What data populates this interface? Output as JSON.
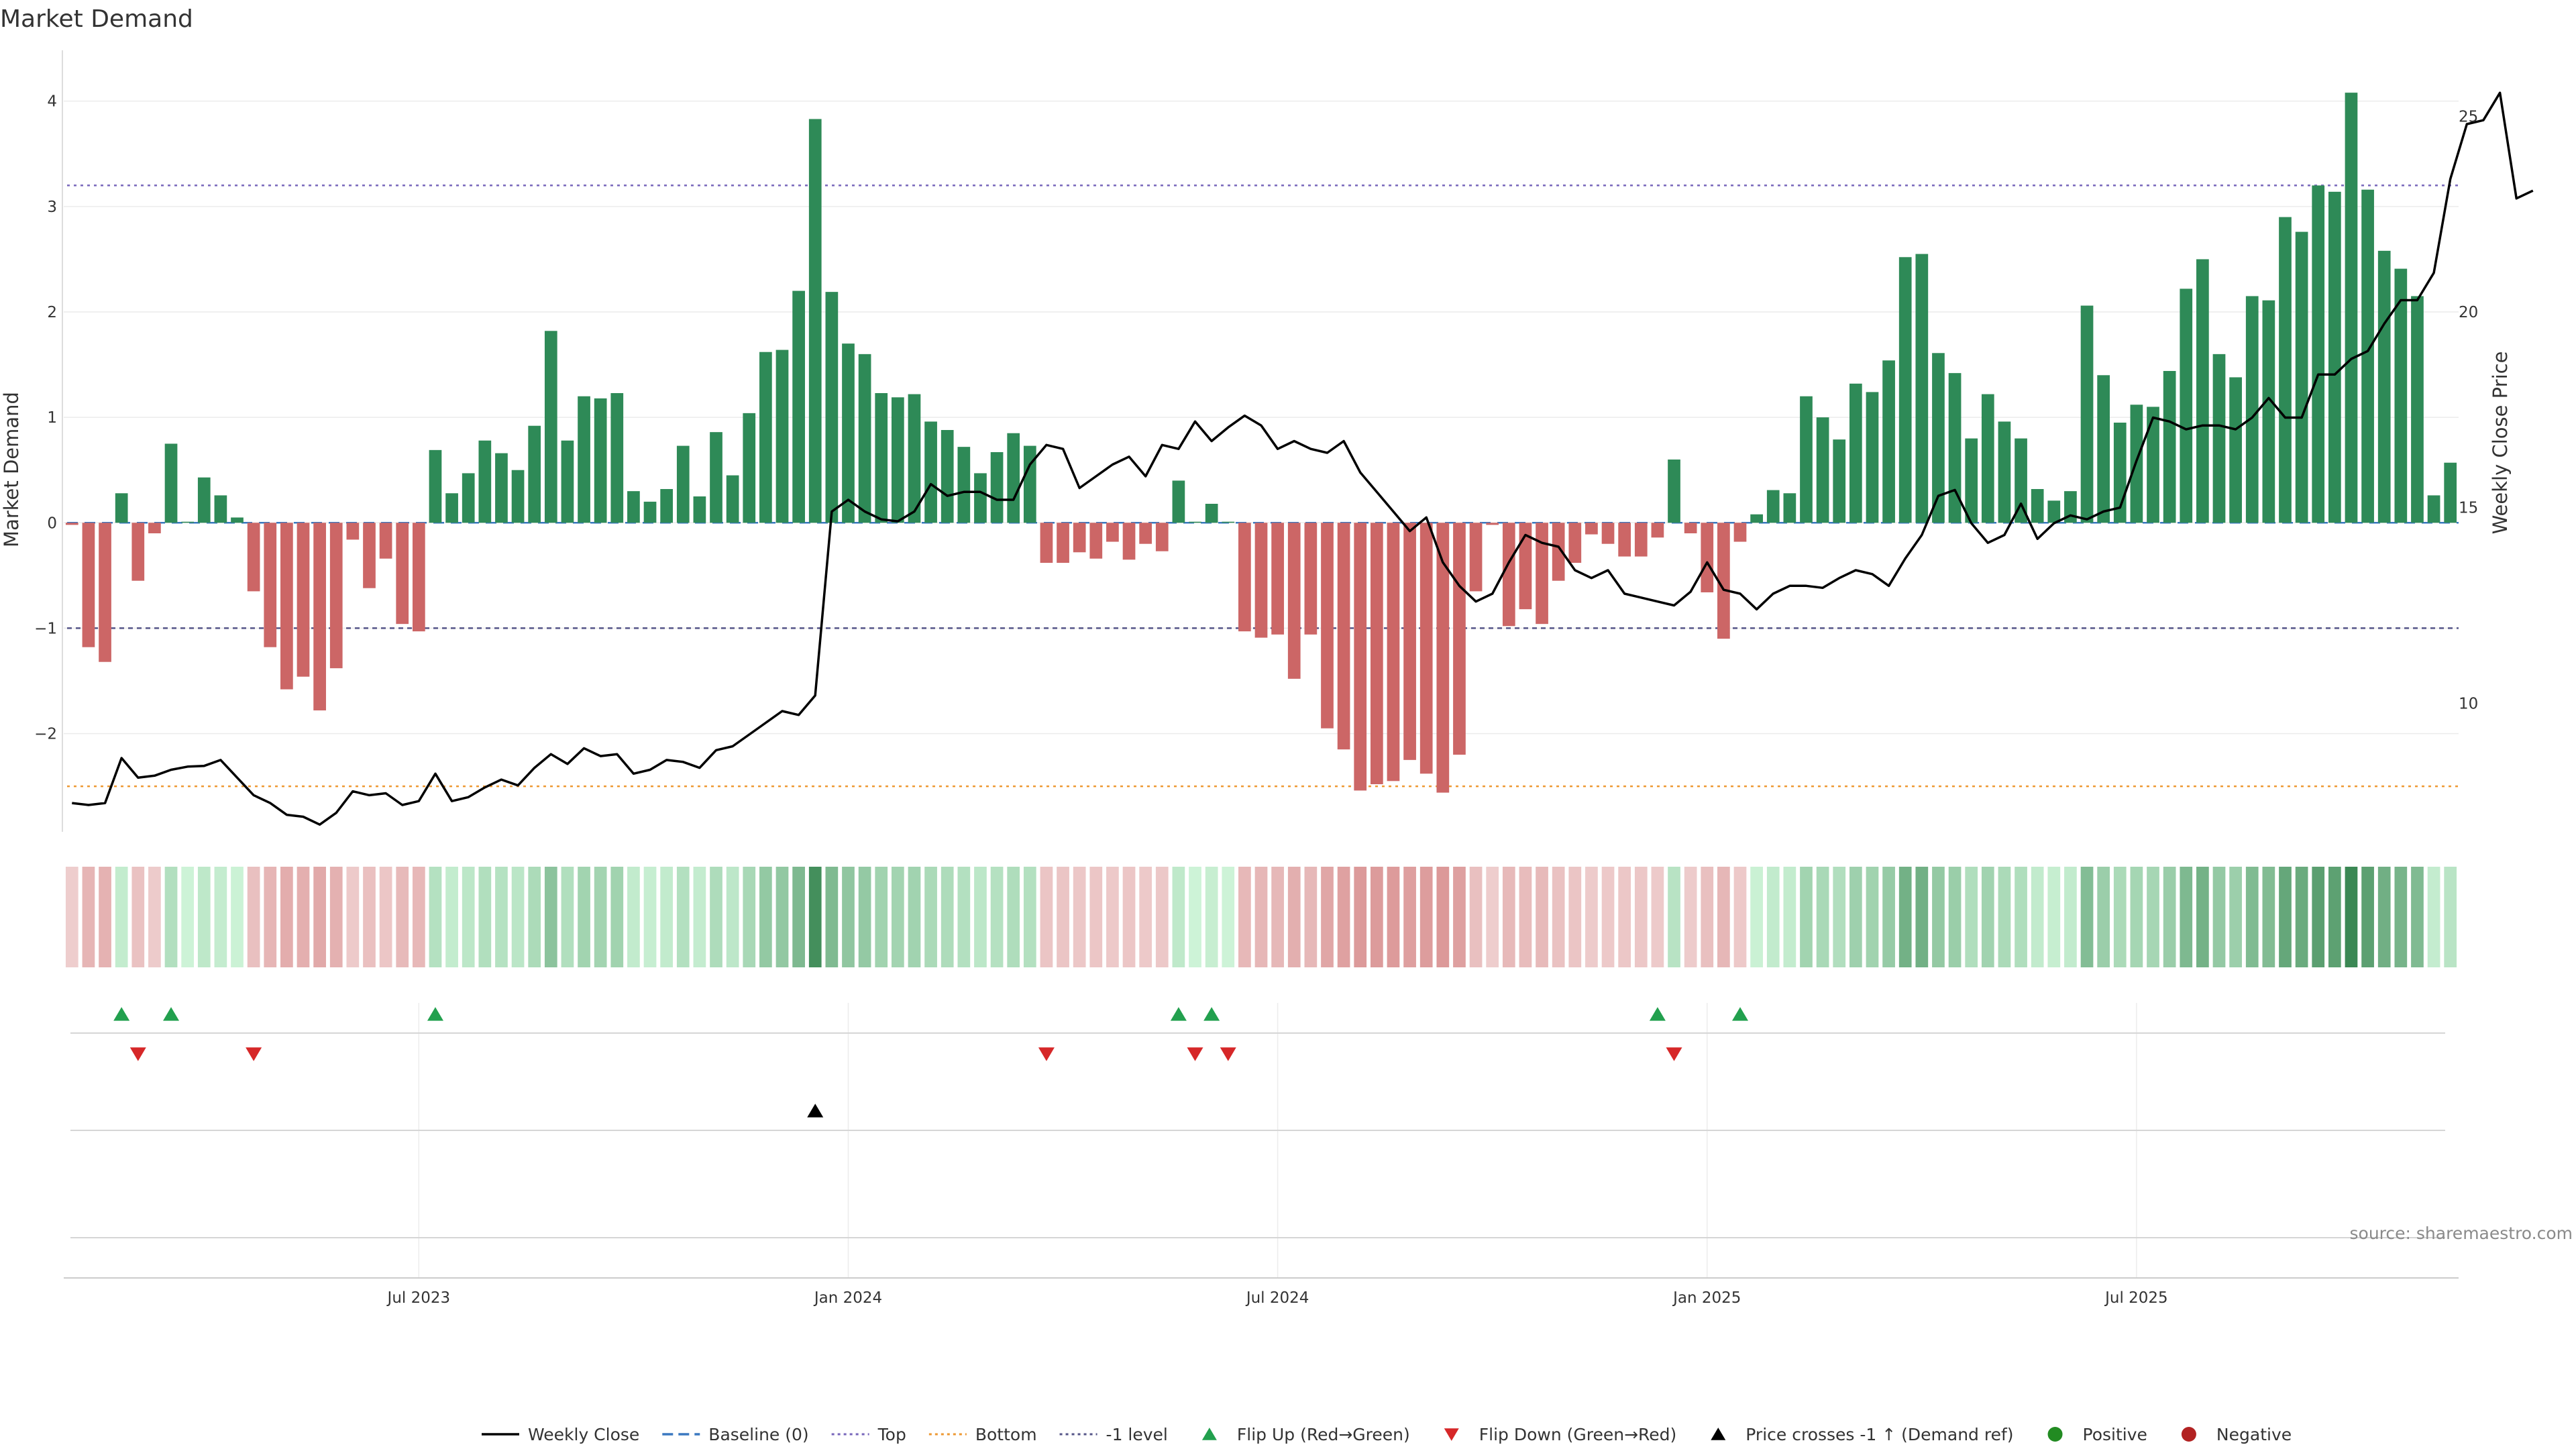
{
  "chart_data": {
    "type": "bar",
    "title": "Market Demand",
    "ylabel": "Market Demand",
    "y2label": "Weekly Close Price",
    "ylim": [
      -2.9,
      4.45
    ],
    "y2lim": [
      6.8,
      26.6
    ],
    "yticks": [
      {
        "value": 4,
        "label": "4"
      },
      {
        "value": 3,
        "label": "3"
      },
      {
        "value": 2,
        "label": "2"
      },
      {
        "value": 1,
        "label": "1"
      },
      {
        "value": 0,
        "label": "0"
      },
      {
        "value": -1,
        "label": "−1"
      },
      {
        "value": -2,
        "label": "−2"
      }
    ],
    "y2ticks": [
      {
        "value": 25,
        "label": "25"
      },
      {
        "value": 20,
        "label": "20"
      },
      {
        "value": 15,
        "label": "15"
      },
      {
        "value": 10,
        "label": "10"
      }
    ],
    "xticks": [
      {
        "index": 21,
        "label": "Jul 2023"
      },
      {
        "index": 47,
        "label": "Jan 2024"
      },
      {
        "index": 73,
        "label": "Jul 2024"
      },
      {
        "index": 99,
        "label": "Jan 2025"
      },
      {
        "index": 125,
        "label": "Jul 2025"
      }
    ],
    "reference_lines": {
      "top": 3.2,
      "bottom": -2.5,
      "minus_one": -1,
      "baseline": 0
    },
    "demand": [
      -0.02,
      -1.18,
      -1.32,
      0.28,
      -0.55,
      -0.1,
      0.75,
      0.01,
      0.43,
      0.26,
      0.05,
      -0.65,
      -1.18,
      -1.58,
      -1.46,
      -1.78,
      -1.38,
      -0.16,
      -0.62,
      -0.34,
      -0.96,
      -1.03,
      0.69,
      0.28,
      0.47,
      0.78,
      0.66,
      0.5,
      0.92,
      1.82,
      0.78,
      1.2,
      1.18,
      1.23,
      0.3,
      0.2,
      0.32,
      0.73,
      0.25,
      0.86,
      0.45,
      1.04,
      1.62,
      1.64,
      2.2,
      3.83,
      2.19,
      1.7,
      1.6,
      1.23,
      1.19,
      1.22,
      0.96,
      0.88,
      0.72,
      0.47,
      0.67,
      0.85,
      0.73,
      -0.38,
      -0.38,
      -0.28,
      -0.34,
      -0.18,
      -0.35,
      -0.2,
      -0.27,
      0.4,
      0.01,
      0.18,
      0.01,
      -1.03,
      -1.09,
      -1.06,
      -1.48,
      -1.06,
      -1.95,
      -2.15,
      -2.54,
      -2.48,
      -2.45,
      -2.25,
      -2.38,
      -2.56,
      -2.2,
      -0.65,
      -0.02,
      -0.98,
      -0.82,
      -0.96,
      -0.55,
      -0.38,
      -0.11,
      -0.2,
      -0.32,
      -0.32,
      -0.14,
      0.6,
      -0.1,
      -0.66,
      -1.1,
      -0.18,
      0.08,
      0.31,
      0.28,
      1.2,
      1.0,
      0.79,
      1.32,
      1.24,
      1.54,
      2.52,
      2.55,
      1.61,
      1.42,
      0.8,
      1.22,
      0.96,
      0.8,
      0.32,
      0.21,
      0.3,
      2.06,
      1.4,
      0.95,
      1.12,
      1.1,
      1.44,
      2.22,
      2.5,
      1.6,
      1.38,
      2.15,
      2.11,
      2.9,
      2.76,
      3.2,
      3.14,
      4.08,
      3.16,
      2.58,
      2.41,
      2.15,
      0.26,
      0.57
    ],
    "weekly_close": [
      7.45,
      7.4,
      7.45,
      8.6,
      8.1,
      8.15,
      8.3,
      8.38,
      8.4,
      8.55,
      8.1,
      7.65,
      7.45,
      7.15,
      7.1,
      6.9,
      7.2,
      7.75,
      7.65,
      7.7,
      7.4,
      7.5,
      8.2,
      7.5,
      7.6,
      7.85,
      8.05,
      7.9,
      8.35,
      8.7,
      8.45,
      8.85,
      8.65,
      8.7,
      8.2,
      8.3,
      8.55,
      8.5,
      8.35,
      8.8,
      8.9,
      9.2,
      9.5,
      9.8,
      9.7,
      10.2,
      14.9,
      15.2,
      14.9,
      14.7,
      14.65,
      14.9,
      15.6,
      15.3,
      15.4,
      15.4,
      15.2,
      15.2,
      16.1,
      16.6,
      16.5,
      15.5,
      15.8,
      16.1,
      16.3,
      15.8,
      16.6,
      16.5,
      17.2,
      16.7,
      17.05,
      17.35,
      17.1,
      16.5,
      16.7,
      16.5,
      16.4,
      16.7,
      15.9,
      15.4,
      14.9,
      14.4,
      14.75,
      13.6,
      13.0,
      12.6,
      12.8,
      13.6,
      14.3,
      14.1,
      14.0,
      13.4,
      13.2,
      13.4,
      12.8,
      12.7,
      12.6,
      12.5,
      12.85,
      13.6,
      12.9,
      12.8,
      12.4,
      12.8,
      13.0,
      13.0,
      12.95,
      13.2,
      13.4,
      13.3,
      13.0,
      13.7,
      14.3,
      15.3,
      15.45,
      14.6,
      14.1,
      14.3,
      15.1,
      14.2,
      14.6,
      14.8,
      14.7,
      14.9,
      15.0,
      16.2,
      17.3,
      17.2,
      17.0,
      17.1,
      17.1,
      17.0,
      17.3,
      17.8,
      17.3,
      17.3,
      18.4,
      18.4,
      18.8,
      19.0,
      19.7,
      20.3,
      20.3,
      21.0,
      23.4,
      24.8,
      24.9,
      25.6,
      22.9,
      23.1
    ],
    "flip_up_idx": [
      3,
      6,
      22,
      67,
      69,
      96,
      101
    ],
    "flip_down_idx": [
      4,
      11,
      59,
      68,
      70,
      97
    ],
    "price_cross_idx": [
      45
    ],
    "legend": [
      {
        "key": "weekly-close",
        "label": "Weekly Close",
        "color": "#000000",
        "marker": "line"
      },
      {
        "key": "baseline",
        "label": "Baseline (0)",
        "color": "#3a78c0",
        "marker": "dash"
      },
      {
        "key": "top",
        "label": "Top",
        "color": "#7766bb",
        "marker": "dot"
      },
      {
        "key": "bottom",
        "label": "Bottom",
        "color": "#ee9933",
        "marker": "dot"
      },
      {
        "key": "minus-one",
        "label": "-1 level",
        "color": "#555588",
        "marker": "dot"
      },
      {
        "key": "flip-up",
        "label": "Flip Up (Red→Green)",
        "color": "#22a04e",
        "marker": "tri-up"
      },
      {
        "key": "flip-down",
        "label": "Flip Down (Green→Red)",
        "color": "#d62728",
        "marker": "tri-down"
      },
      {
        "key": "price-cross",
        "label": "Price crosses -1 ↑ (Demand ref)",
        "color": "#000000",
        "marker": "tri-up"
      },
      {
        "key": "positive",
        "label": "Positive",
        "color": "#228b22",
        "marker": "circle"
      },
      {
        "key": "negative",
        "label": "Negative",
        "color": "#b22222",
        "marker": "circle"
      }
    ],
    "colors": {
      "positive": "#2e8a57",
      "negative": "#cc6666",
      "line": "#000000"
    }
  },
  "source": "source: sharemaestro.com"
}
